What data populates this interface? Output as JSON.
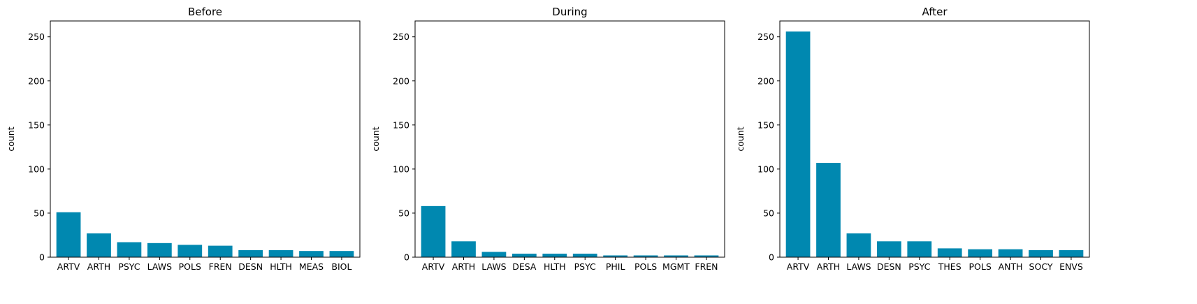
{
  "figure": {
    "bar_color": "#0088b0",
    "axes_color": "#000000",
    "background": "#ffffff"
  },
  "chart_data": [
    {
      "type": "bar",
      "title": "Before",
      "xlabel": "",
      "ylabel": "count",
      "ylim": [
        0,
        268
      ],
      "yticks": [
        0,
        50,
        100,
        150,
        200,
        250
      ],
      "grid": false,
      "categories": [
        "ARTV",
        "ARTH",
        "PSYC",
        "LAWS",
        "POLS",
        "FREN",
        "DESN",
        "HLTH",
        "MEAS",
        "BIOL"
      ],
      "values": [
        51,
        27,
        17,
        16,
        14,
        13,
        8,
        8,
        7,
        7
      ]
    },
    {
      "type": "bar",
      "title": "During",
      "xlabel": "",
      "ylabel": "count",
      "ylim": [
        0,
        268
      ],
      "yticks": [
        0,
        50,
        100,
        150,
        200,
        250
      ],
      "grid": false,
      "categories": [
        "ARTV",
        "ARTH",
        "LAWS",
        "DESA",
        "HLTH",
        "PSYC",
        "PHIL",
        "POLS",
        "MGMT",
        "FREN"
      ],
      "values": [
        58,
        18,
        6,
        4,
        4,
        4,
        2,
        2,
        2,
        2
      ]
    },
    {
      "type": "bar",
      "title": "After",
      "xlabel": "",
      "ylabel": "count",
      "ylim": [
        0,
        268
      ],
      "yticks": [
        0,
        50,
        100,
        150,
        200,
        250
      ],
      "grid": false,
      "categories": [
        "ARTV",
        "ARTH",
        "LAWS",
        "DESN",
        "PSYC",
        "THES",
        "POLS",
        "ANTH",
        "SOCY",
        "ENVS"
      ],
      "values": [
        256,
        107,
        27,
        18,
        18,
        10,
        9,
        9,
        8,
        8
      ]
    }
  ]
}
